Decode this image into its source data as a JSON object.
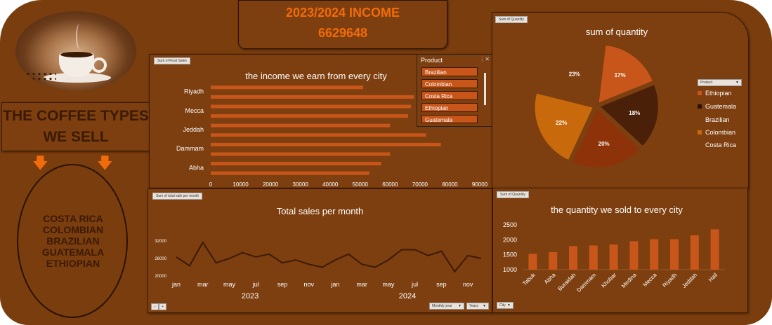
{
  "header": {
    "income_title": "2023/2024 INCOME",
    "income_value": "6629648"
  },
  "left": {
    "types_title_1": "THE COFFEE TYPES",
    "types_title_2": "WE SELL",
    "types": [
      "COSTA RICA",
      "COLOMBIAN",
      "BRAZILIAN",
      "GUATEMALA",
      "ETHIOPIAN"
    ]
  },
  "slicer": {
    "label": "Product",
    "items": [
      "Brazilian",
      "Colombian",
      "Costa Rica",
      "Ethiopian",
      "Guatemala"
    ]
  },
  "pivot_tags": {
    "city_sales": "Sum of Final Sales",
    "month_sales": "Sum of total sale per month",
    "pie_qty": "Sum of Quantity",
    "city_qty": "Sum of Quantity"
  },
  "controls": {
    "product_filter": "Product",
    "monthly_year": "Monthly year",
    "years": "Years",
    "city_filter": "City"
  },
  "colors": {
    "bar": "#c8561a",
    "line": "#3b1a04",
    "pie": [
      "#c8561a",
      "#4a2108",
      "#7d3f0f",
      "#c86a0c",
      "#8e3209"
    ]
  },
  "chart_data": [
    {
      "type": "bar",
      "orientation": "horizontal",
      "title": "the income we earn from every city",
      "categories": [
        "Riyadh",
        "Mecca",
        "Jeddah",
        "Dammam",
        "Abha"
      ],
      "bars": [
        51000,
        68000,
        67000,
        66000,
        60000,
        72000,
        77000,
        60000,
        57000,
        53000
      ],
      "xlim": [
        0,
        90000
      ],
      "xticks": [
        0,
        10000,
        20000,
        30000,
        40000,
        50000,
        60000,
        70000,
        80000,
        90000
      ]
    },
    {
      "type": "line",
      "title": "Total sales per month",
      "x_labels": [
        "jan",
        "mar",
        "may",
        "jul",
        "sep",
        "nov",
        "jan",
        "mar",
        "may",
        "jul",
        "sep",
        "nov"
      ],
      "year_labels": [
        "2023",
        "2024"
      ],
      "values": [
        26500,
        23500,
        31500,
        24500,
        26000,
        28000,
        26500,
        27500,
        24500,
        25500,
        24000,
        23000,
        25500,
        27500,
        24000,
        23000,
        25500,
        29000,
        29000,
        27000,
        28500,
        21500,
        27000,
        26000
      ],
      "ylim": [
        20000,
        32000
      ],
      "yticks": [
        20000,
        26000,
        32000
      ]
    },
    {
      "type": "pie",
      "title": "sum of quantity",
      "slices": [
        {
          "name": "Ethiopian",
          "value": 17,
          "label": "17%"
        },
        {
          "name": "Guatemala",
          "value": 18,
          "label": "18%"
        },
        {
          "name": "Brazilian",
          "value": 20,
          "label": "20%"
        },
        {
          "name": "Colombian",
          "value": 22,
          "label": "22%"
        },
        {
          "name": "Costa Rica",
          "value": 23,
          "label": "23%"
        }
      ],
      "legend": [
        "Ethiopian",
        "Guatemala",
        "Brazilian",
        "Colombian",
        "Costa Rica"
      ]
    },
    {
      "type": "bar",
      "title": "the quantity we sold to every city",
      "categories": [
        "Tabuk",
        "Abha",
        "Buraidah",
        "Dammam",
        "Khobar",
        "Medina",
        "Mecca",
        "Riyadh",
        "Jeddah",
        "Hail"
      ],
      "values": [
        1530,
        1590,
        1790,
        1810,
        1840,
        1950,
        2020,
        2020,
        2150,
        2350
      ],
      "ylim": [
        1000,
        2500
      ],
      "yticks": [
        1000,
        1500,
        2000,
        2500
      ]
    }
  ]
}
